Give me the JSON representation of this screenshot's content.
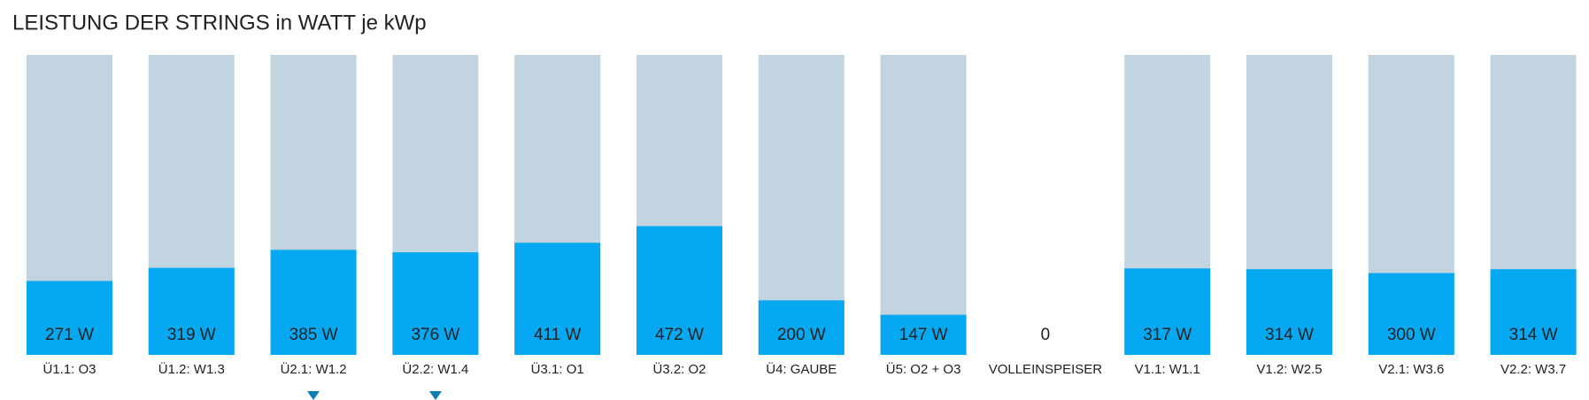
{
  "chart_data": {
    "type": "bar",
    "title": "LEISTUNG DER STRINGS in WATT je kWp",
    "categories": [
      "Ü1.1: O3",
      "Ü1.2: W1.3",
      "Ü2.1: W1.2",
      "Ü2.2: W1.4",
      "Ü3.1: O1",
      "Ü3.2: O2",
      "Ü4: GAUBE",
      "Ü5: O2 + O3",
      "VOLLEINSPEISER",
      "V1.1: W1.1",
      "V1.2: W2.5",
      "V2.1: W3.6",
      "V2.2: W3.7"
    ],
    "values": [
      271,
      319,
      385,
      376,
      411,
      472,
      200,
      147,
      0,
      317,
      314,
      300,
      314
    ],
    "value_labels": [
      "271 W",
      "319 W",
      "385 W",
      "376 W",
      "411 W",
      "472 W",
      "200 W",
      "147 W",
      "0",
      "317 W",
      "314 W",
      "300 W",
      "314 W"
    ],
    "show_track": [
      true,
      true,
      true,
      true,
      true,
      true,
      true,
      true,
      false,
      true,
      true,
      true,
      true
    ],
    "color": "#05a8f1",
    "track_color": "#c1d4df",
    "ylim": [
      0,
      1100
    ]
  }
}
